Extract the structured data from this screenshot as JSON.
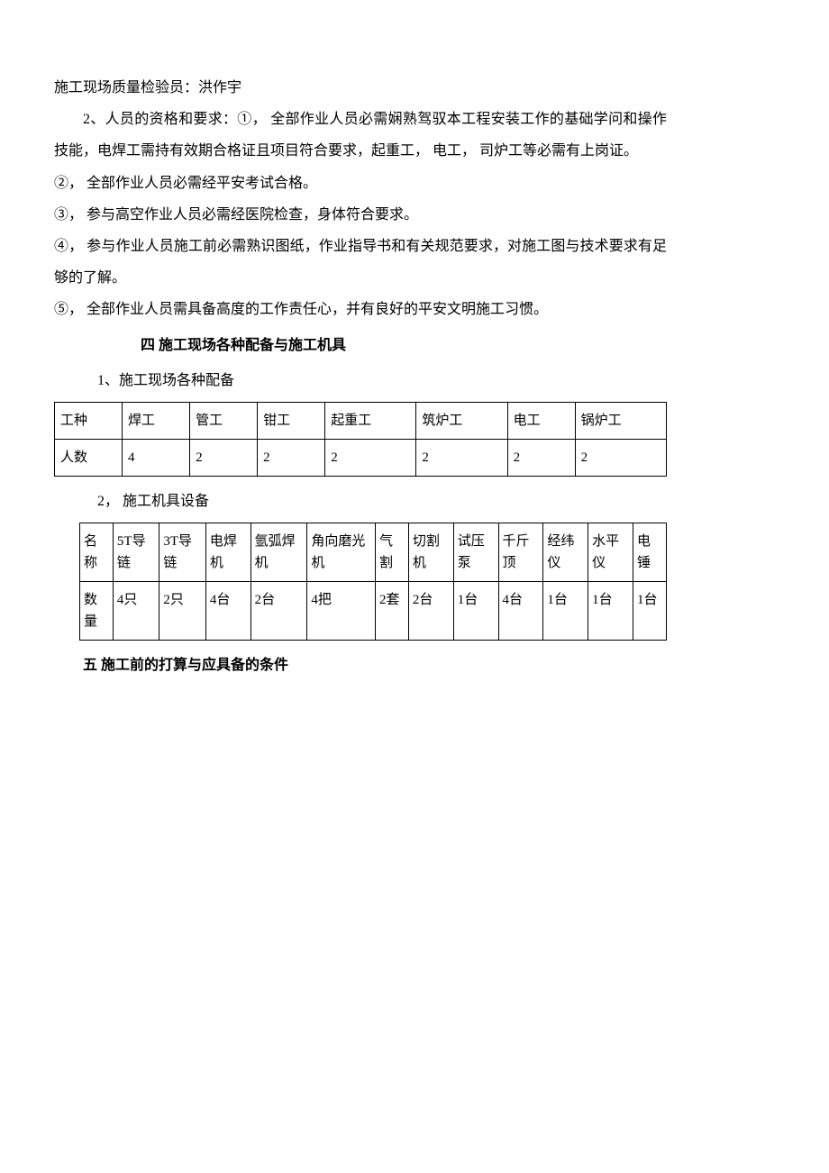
{
  "line_inspector": "施工现场质量检验员：洪作宇",
  "req_intro": "2、人员的资格和要求：①，  全部作业人员必需娴熟驾驭本工程安装工作的基础学问和操作技能，电焊工需持有效期合格证且项目符合要求，起重工，  电工，  司炉工等必需有上岗证。",
  "req2": "②，  全部作业人员必需经平安考试合格。",
  "req3": "③，  参与高空作业人员必需经医院检查，身体符合要求。",
  "req4": "④，  参与作业人员施工前必需熟识图纸，作业指导书和有关规范要求，对施工图与技术要求有足够的了解。",
  "req5": "⑤，  全部作业人员需具备高度的工作责任心，并有良好的平安文明施工习惯。",
  "heading4": "四    施工现场各种配备与施工机具",
  "sub1": "1、施工现场各种配备",
  "table1": {
    "row1": [
      "工种",
      "焊工",
      "管工",
      "钳工",
      "起重工",
      "筑炉工",
      "电工",
      "锅炉工"
    ],
    "row2": [
      "人数",
      "4",
      "2",
      "2",
      "2",
      "2",
      "2",
      "2"
    ]
  },
  "sub2": "2，  施工机具设备",
  "table2": {
    "row1": [
      "名称",
      "5T导链",
      "3T导链",
      "电焊机",
      "氩弧焊机",
      "角向磨光机",
      "气割",
      "切割机",
      "试压泵",
      "千斤顶",
      "经纬仪",
      "水平仪",
      "电锤"
    ],
    "row2": [
      "数量",
      "4只",
      "2只",
      "4台",
      "2台",
      "4把",
      "2套",
      "2台",
      "1台",
      "4台",
      "1台",
      "1台",
      "1台"
    ]
  },
  "heading5": "五    施工前的打算与应具备的条件"
}
